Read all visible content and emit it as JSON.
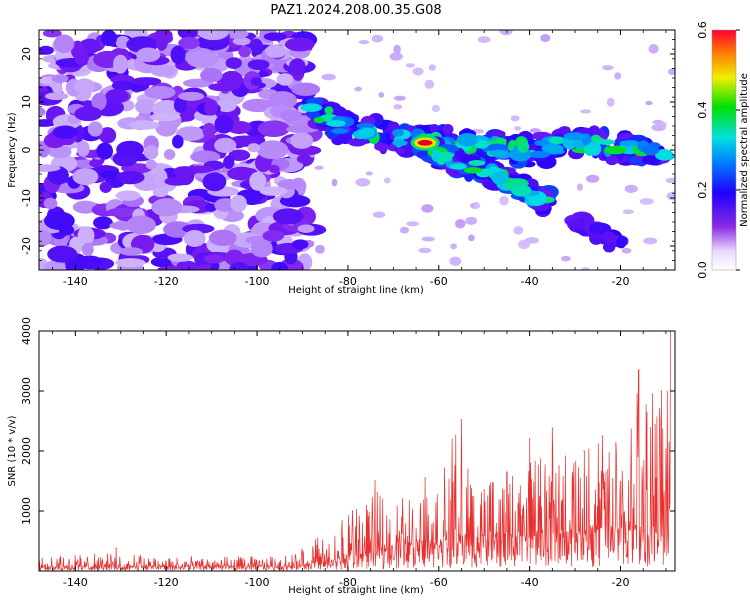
{
  "chart_data": [
    {
      "type": "heatmap",
      "title": "PAZ1.2024.208.00.35.G08",
      "xlabel": "Height of straight line (km)",
      "ylabel": "Frequency (Hz)",
      "xlim": [
        -148,
        -8
      ],
      "ylim": [
        -25,
        25
      ],
      "xticks": [
        -140,
        -120,
        -100,
        -80,
        -60,
        -40,
        -20
      ],
      "xtick_labels": [
        "-140",
        "-120",
        "-100",
        "-80",
        "-60",
        "-40",
        "-20"
      ],
      "yticks": [
        -20,
        -10,
        0,
        10,
        20
      ],
      "ytick_labels": [
        "-20",
        "-10",
        "0",
        "10",
        "20"
      ],
      "colorbar": {
        "label": "Normalized spectral amplitude",
        "range": [
          0.0,
          0.6
        ],
        "ticks": [
          0.0,
          0.2,
          0.4,
          0.6
        ],
        "tick_labels": [
          "0.0",
          "0.2",
          "0.4",
          "0.6"
        ],
        "colormap": "rainbow (white-violet-blue-cyan-green-yellow-red)"
      },
      "features": [
        {
          "description": "diffuse noise",
          "x_range": [
            -148,
            -88
          ],
          "y_range": [
            -25,
            25
          ],
          "level": 0.12
        },
        {
          "description": "main signal ridge",
          "points": [
            [
              -88,
              8
            ],
            [
              -80,
              4.5
            ],
            [
              -70,
              3
            ],
            [
              -60,
              1.5
            ],
            [
              -50,
              0.5
            ],
            [
              -40,
              0
            ],
            [
              -30,
              1.5
            ],
            [
              -20,
              0.5
            ],
            [
              -10,
              0
            ]
          ],
          "peak": [
            -63,
            1.5
          ],
          "peak_level": 0.6
        },
        {
          "description": "secondary branch",
          "points": [
            [
              -62,
              0
            ],
            [
              -55,
              -3
            ],
            [
              -48,
              -5
            ],
            [
              -42,
              -8
            ],
            [
              -36,
              -11
            ]
          ]
        },
        {
          "description": "lower branch",
          "points": [
            [
              -30,
              -15
            ],
            [
              -25,
              -17
            ],
            [
              -20,
              -20
            ]
          ]
        }
      ],
      "colors": {
        "noise": "#7b1cf0",
        "low": "#d9c8ff",
        "peak": "#e01010"
      }
    },
    {
      "type": "line",
      "xlabel": "Height of straight line (km)",
      "ylabel": "SNR (10 * v/v)",
      "xlim": [
        -148,
        -8
      ],
      "ylim": [
        0,
        4000
      ],
      "xticks": [
        -140,
        -120,
        -100,
        -80,
        -60,
        -40,
        -20
      ],
      "xtick_labels": [
        "-140",
        "-120",
        "-100",
        "-80",
        "-60",
        "-40",
        "-20"
      ],
      "yticks": [
        1000,
        2000,
        3000,
        4000
      ],
      "ytick_labels": [
        "1000",
        "2000",
        "3000",
        "4000"
      ],
      "line_color": "#e83030",
      "envelope": {
        "x": [
          -148,
          -140,
          -130,
          -120,
          -110,
          -100,
          -92,
          -88,
          -84,
          -80,
          -76,
          -72,
          -68,
          -64,
          -60,
          -56,
          -52,
          -48,
          -44,
          -40,
          -36,
          -32,
          -28,
          -24,
          -20,
          -16,
          -12,
          -9
        ],
        "baseline": [
          70,
          70,
          75,
          70,
          70,
          70,
          80,
          120,
          150,
          200,
          280,
          350,
          420,
          450,
          480,
          500,
          520,
          550,
          560,
          580,
          600,
          620,
          640,
          650,
          650,
          650,
          680,
          650
        ],
        "max": [
          250,
          280,
          300,
          260,
          240,
          250,
          280,
          550,
          650,
          950,
          1200,
          1400,
          1100,
          1550,
          1700,
          2500,
          1400,
          1500,
          1650,
          1800,
          2300,
          2000,
          2300,
          2250,
          2200,
          3350,
          2950,
          4000
        ]
      },
      "peaks": [
        [
          -131,
          380
        ],
        [
          -79,
          1000
        ],
        [
          -74,
          1500
        ],
        [
          -68,
          1200
        ],
        [
          -63,
          1550
        ],
        [
          -55,
          2520
        ],
        [
          -50,
          1350
        ],
        [
          -45,
          1650
        ],
        [
          -40,
          2200
        ],
        [
          -35,
          2380
        ],
        [
          -28,
          2000
        ],
        [
          -24,
          2250
        ],
        [
          -16,
          3350
        ],
        [
          -13,
          2950
        ],
        [
          -11,
          3000
        ],
        [
          -9,
          4000
        ]
      ]
    }
  ]
}
